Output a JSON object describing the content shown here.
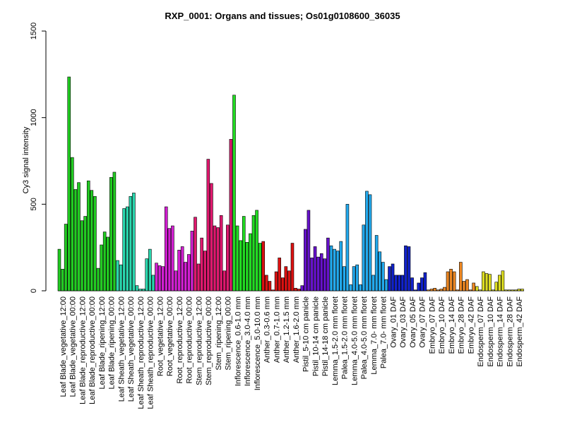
{
  "chart_data": {
    "type": "bar",
    "title": "RXP_0001: Organs and tissues; Os01g0108600_36035",
    "xlabel": "",
    "ylabel": "Cy3 signal intensity",
    "ylim": [
      0,
      1500
    ],
    "yticks": [
      0,
      500,
      1000,
      1500
    ],
    "grid": false,
    "legend": "none",
    "categories": [
      "Leaf Blade_vegetative_12:00",
      "Leaf Blade_vegetative_00:00",
      "Leaf Blade_reproductive_12:00",
      "Leaf Blade_reproductive_00:00",
      "Leaf Blade_ripening_12:00",
      "Leaf Blade_ripening_00:00",
      "Leaf Sheath_vegetative_12:00",
      "Leaf Sheath_vegetative_00:00",
      "Leaf Sheath_reproductive_12:00",
      "Leaf Sheath_reproductive_00:00",
      "Root_vegetative_12:00",
      "Root_vegetative_00:00",
      "Root_reproductive_12:00",
      "Root_reproductive_00:00",
      "Stem_reproductive_12:00",
      "Stem_reproductive_00:00",
      "Stem_ripening_12:00",
      "Stem_ripening_00:00",
      "Inflorescence_0.6-1.0 mm",
      "Inflorescence_3.0-4.0 mm",
      "Inflorescence_5.0-10.0 mm",
      "Anther_0.3-0.6 mm",
      "Anther_0.7-1.0 mm",
      "Anther_1.2-1.5 mm",
      "Anther_1.6-2.0 mm",
      "Pistil_5-10 cm panicle",
      "Pistil_10-14 cm panicle",
      "Pistil_14-18 cm panicle",
      "Lemma_1.5-2.0 mm floret",
      "Palea_1.5-2.0 mm floret",
      "Lemma_4.0-5.0 mm floret",
      "Palea_4.0-5.0 mm floret",
      "Lemma_7.0- mm floret",
      "Palea_7.0- mm floret",
      "Ovary_01 DAF",
      "Ovary_03 DAF",
      "Ovary_05 DAF",
      "Ovary_07 DAF",
      "Embryo_07 DAF",
      "Embryo_10 DAF",
      "Embryo_14 DAF",
      "Embryo_28 DAF",
      "Embryo_42 DAF",
      "Endosperm_07 DAF",
      "Endosperm_10 DAF",
      "Endosperm_14 DAF",
      "Endosperm_28 DAF",
      "Endosperm_42 DAF"
    ],
    "group_colors": [
      "#22cc22",
      "#22cc22",
      "#22cc22",
      "#22cc22",
      "#22cc22",
      "#22cc22",
      "#2ad6ad",
      "#2ad6ad",
      "#2ad6ad",
      "#2ad6ad",
      "#d21fd2",
      "#d21fd2",
      "#d21fd2",
      "#d21fd2",
      "#e0186e",
      "#e0186e",
      "#e0186e",
      "#e0186e",
      "#22dd22",
      "#22dd22",
      "#22dd22",
      "#dd1111",
      "#dd1111",
      "#dd1111",
      "#dd1111",
      "#6611cc",
      "#6611cc",
      "#6611cc",
      "#22aaee",
      "#22aaee",
      "#22aaee",
      "#22aaee",
      "#22aaee",
      "#22aaee",
      "#1122cc",
      "#1122cc",
      "#1122cc",
      "#1122cc",
      "#ee8822",
      "#ee8822",
      "#ee8822",
      "#ee8822",
      "#ee8822",
      "#dddd22",
      "#dddd22",
      "#dddd22",
      "#dddd22",
      "#dddd22"
    ],
    "values": [
      [
        240,
        125,
        385
      ],
      [
        1235,
        770,
        585
      ],
      [
        625,
        405,
        430
      ],
      [
        635,
        580,
        545
      ],
      [
        130,
        265,
        340
      ],
      [
        310,
        655,
        685
      ],
      [
        175,
        150,
        475
      ],
      [
        485,
        545,
        565
      ],
      [
        30,
        10,
        10
      ],
      [
        185,
        240,
        90
      ],
      [
        160,
        145,
        140
      ],
      [
        485,
        360,
        375
      ],
      [
        115,
        235,
        255
      ],
      [
        165,
        210,
        345
      ],
      [
        425,
        155,
        305
      ],
      [
        230,
        760,
        620
      ],
      [
        375,
        365,
        435
      ],
      [
        115,
        380,
        875
      ],
      [
        1130,
        375,
        290
      ],
      [
        430,
        280,
        330
      ],
      [
        435,
        465,
        275
      ],
      [
        285,
        90,
        55
      ],
      [
        5,
        110,
        190
      ],
      [
        75,
        140,
        115
      ],
      [
        275,
        15,
        10
      ],
      [
        30,
        355,
        465
      ],
      [
        190,
        255,
        195
      ],
      [
        215,
        185,
        305
      ],
      [
        260,
        240,
        230
      ],
      [
        285,
        140,
        500
      ],
      [
        35,
        140,
        150
      ],
      [
        35,
        380,
        575
      ],
      [
        555,
        90,
        320
      ],
      [
        225,
        165,
        65
      ],
      [
        140,
        155,
        90
      ],
      [
        90,
        90,
        260
      ],
      [
        255,
        75,
        5
      ],
      [
        45,
        75,
        105
      ],
      [
        5,
        10,
        15
      ],
      [
        5,
        10,
        20
      ],
      [
        110,
        125,
        110
      ],
      [
        5,
        165,
        55
      ],
      [
        65,
        5,
        45
      ],
      [
        25,
        5,
        110
      ],
      [
        100,
        95,
        5
      ],
      [
        50,
        90,
        115
      ],
      [
        5,
        5,
        5
      ],
      [
        5,
        10,
        10
      ]
    ]
  }
}
